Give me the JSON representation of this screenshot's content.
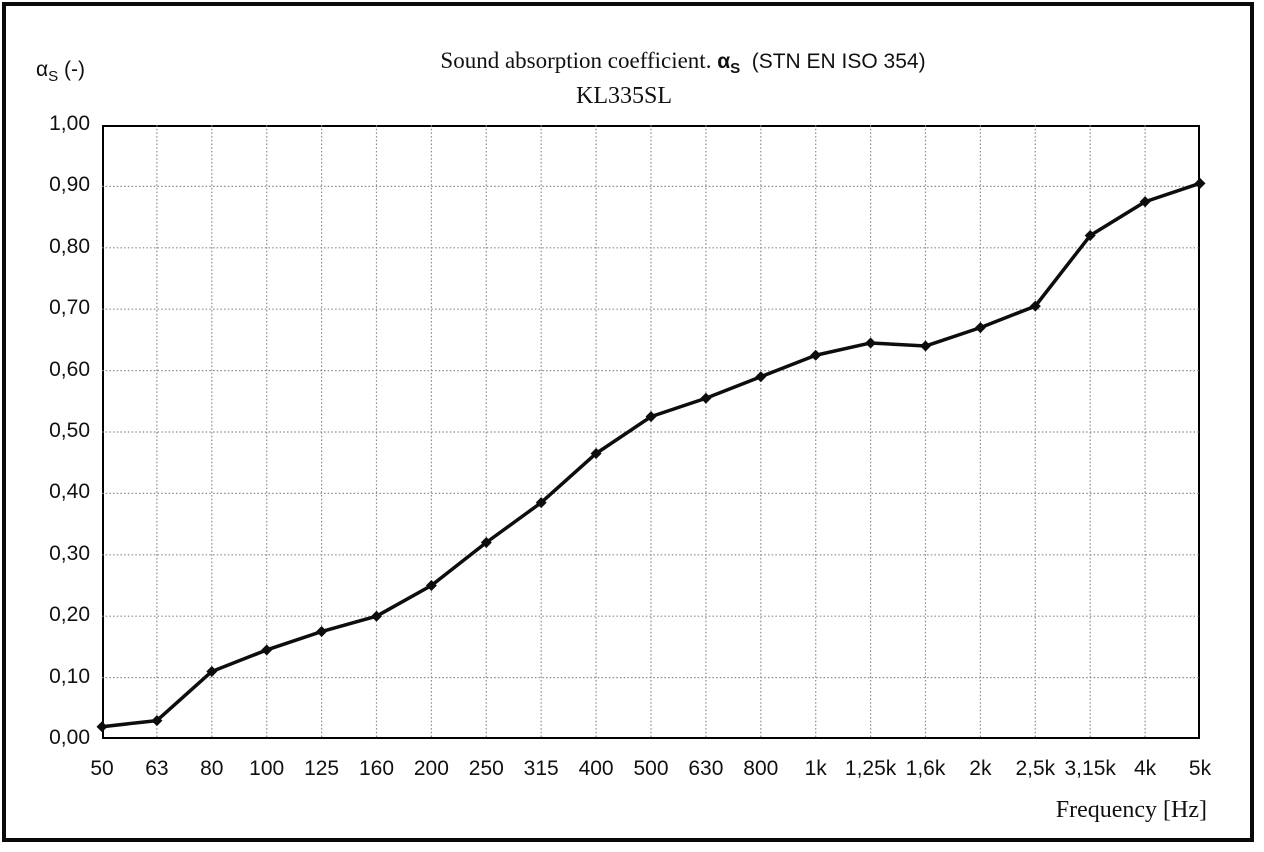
{
  "chart_data": {
    "type": "line",
    "title": "Sound absorption coefficient. αS (STN EN ISO 354)",
    "title_parts": {
      "main": "Sound absorption coefficient.",
      "alpha_symbol": "α",
      "alpha_sub": "S",
      "standard": "(STN EN ISO 354)"
    },
    "subtitle": "KL335SL",
    "y_axis_unit": {
      "alpha": "α",
      "sub": "S",
      "suffix": " (-)"
    },
    "xlabel": "Frequency [Hz]",
    "ylabel": "αS (-)",
    "categories": [
      "50",
      "63",
      "80",
      "100",
      "125",
      "160",
      "200",
      "250",
      "315",
      "400",
      "500",
      "630",
      "800",
      "1k",
      "1,25k",
      "1,6k",
      "2k",
      "2,5k",
      "3,15k",
      "4k",
      "5k"
    ],
    "values": [
      0.02,
      0.03,
      0.11,
      0.145,
      0.175,
      0.2,
      0.25,
      0.32,
      0.385,
      0.465,
      0.525,
      0.555,
      0.59,
      0.625,
      0.645,
      0.64,
      0.67,
      0.705,
      0.82,
      0.875,
      0.905
    ],
    "y_ticks": {
      "labels": [
        "0,00",
        "0,10",
        "0,20",
        "0,30",
        "0,40",
        "0,50",
        "0,60",
        "0,70",
        "0,80",
        "0,90",
        "1,00"
      ],
      "values": [
        0.0,
        0.1,
        0.2,
        0.3,
        0.4,
        0.5,
        0.6,
        0.7,
        0.8,
        0.9,
        1.0
      ]
    },
    "ylim": [
      0,
      1
    ],
    "grid": "dotted-both-axes",
    "legend": "none",
    "marker": "diamond",
    "colors": {
      "line": "#0d0d0d",
      "grid": "#8a8a8a",
      "text": "#111111",
      "border": "#000000"
    }
  }
}
